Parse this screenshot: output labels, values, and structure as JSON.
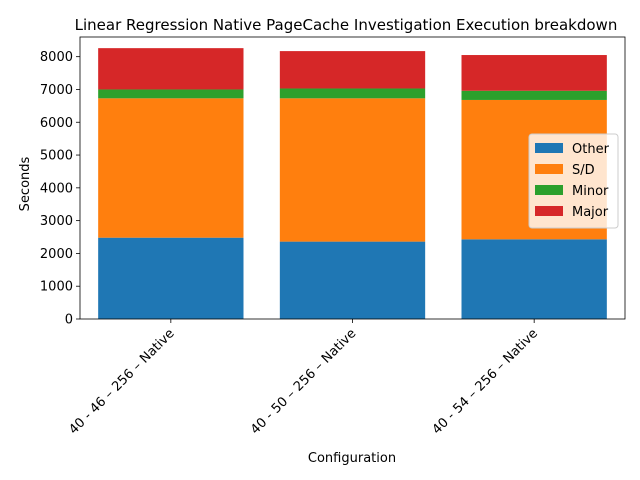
{
  "chart_data": {
    "type": "bar",
    "stacked": true,
    "title": "Linear Regression Native PageCache Investigation Execution breakdown",
    "xlabel": "Configuration",
    "ylabel": "Seconds",
    "ylim": [
      0,
      8600
    ],
    "yticks": [
      0,
      1000,
      2000,
      3000,
      4000,
      5000,
      6000,
      7000,
      8000
    ],
    "categories": [
      "40 - 46 – 256 – Native",
      "40 - 50 – 256 – Native",
      "40 - 54 – 256 – Native"
    ],
    "series": [
      {
        "name": "Other",
        "color": "#1f77b4",
        "values": [
          2480,
          2360,
          2430
        ]
      },
      {
        "name": "S/D",
        "color": "#ff7f0e",
        "values": [
          4250,
          4370,
          4250
        ]
      },
      {
        "name": "Minor",
        "color": "#2ca02c",
        "values": [
          270,
          300,
          280
        ]
      },
      {
        "name": "Major",
        "color": "#d62728",
        "values": [
          1260,
          1140,
          1090
        ]
      }
    ],
    "legend": "center-right",
    "grid": false
  }
}
